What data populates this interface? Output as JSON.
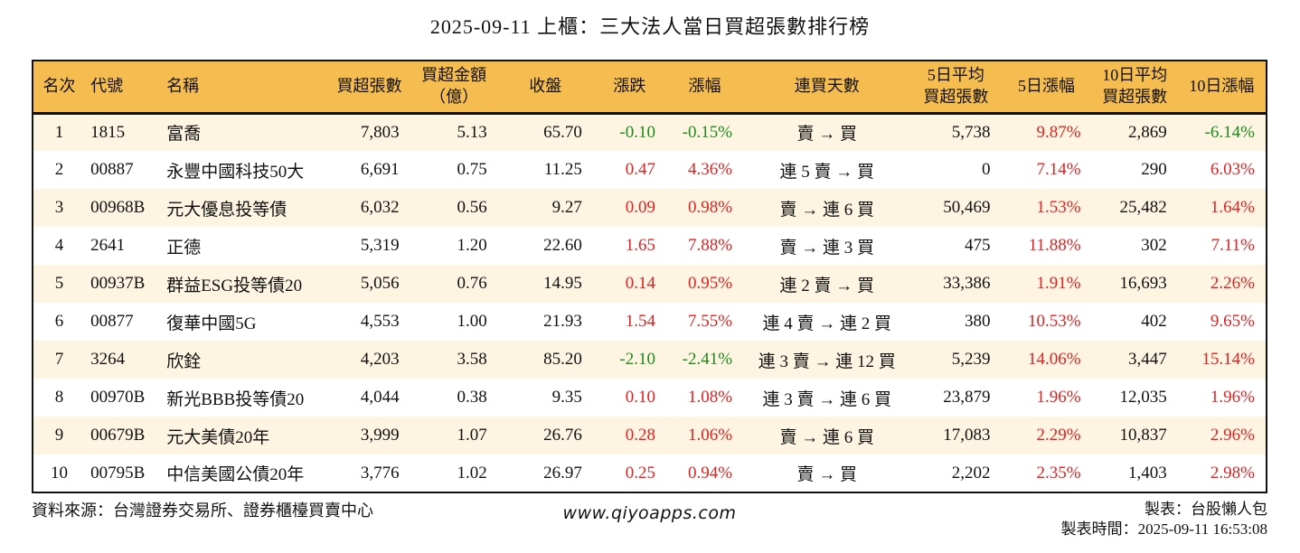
{
  "title": "2025-09-11 上櫃：三大法人當日買超張數排行榜",
  "colors": {
    "header_bg": "#F5BC4F",
    "row_alt_bg": "#FDF5E2",
    "up_red": "#E02222",
    "down_green": "#1E8A1E",
    "border": "#111111"
  },
  "table": {
    "headers": [
      "名次",
      "代號",
      "名稱",
      "買超張數",
      "買超金額\n（億）",
      "收盤",
      "漲跌",
      "漲幅",
      "連買天數",
      "5日平均\n買超張數",
      "5日漲幅",
      "10日平均\n買超張數",
      "10日漲幅"
    ],
    "rows": [
      {
        "cells": [
          "1",
          "1815",
          "富喬",
          "7,803",
          "5.13",
          "65.70",
          "-0.10",
          "-0.15%",
          "賣 → 買",
          "5,738",
          "9.87%",
          "2,869",
          "-6.14%"
        ],
        "cell_colors": [
          null,
          null,
          null,
          null,
          null,
          null,
          "green",
          "green",
          null,
          null,
          "red",
          null,
          "green"
        ]
      },
      {
        "cells": [
          "2",
          "00887",
          "永豐中國科技50大",
          "6,691",
          "0.75",
          "11.25",
          "0.47",
          "4.36%",
          "連 5 賣 → 買",
          "0",
          "7.14%",
          "290",
          "6.03%"
        ],
        "cell_colors": [
          null,
          null,
          null,
          null,
          null,
          null,
          "red",
          "red",
          null,
          null,
          "red",
          null,
          "red"
        ]
      },
      {
        "cells": [
          "3",
          "00968B",
          "元大優息投等債",
          "6,032",
          "0.56",
          "9.27",
          "0.09",
          "0.98%",
          "賣 → 連 6 買",
          "50,469",
          "1.53%",
          "25,482",
          "1.64%"
        ],
        "cell_colors": [
          null,
          null,
          null,
          null,
          null,
          null,
          "red",
          "red",
          null,
          null,
          "red",
          null,
          "red"
        ]
      },
      {
        "cells": [
          "4",
          "2641",
          "正德",
          "5,319",
          "1.20",
          "22.60",
          "1.65",
          "7.88%",
          "賣 → 連 3 買",
          "475",
          "11.88%",
          "302",
          "7.11%"
        ],
        "cell_colors": [
          null,
          null,
          null,
          null,
          null,
          null,
          "red",
          "red",
          null,
          null,
          "red",
          null,
          "red"
        ]
      },
      {
        "cells": [
          "5",
          "00937B",
          "群益ESG投等債20",
          "5,056",
          "0.76",
          "14.95",
          "0.14",
          "0.95%",
          "連 2 賣 → 買",
          "33,386",
          "1.91%",
          "16,693",
          "2.26%"
        ],
        "cell_colors": [
          null,
          null,
          null,
          null,
          null,
          null,
          "red",
          "red",
          null,
          null,
          "red",
          null,
          "red"
        ]
      },
      {
        "cells": [
          "6",
          "00877",
          "復華中國5G",
          "4,553",
          "1.00",
          "21.93",
          "1.54",
          "7.55%",
          "連 4 賣 → 連 2 買",
          "380",
          "10.53%",
          "402",
          "9.65%"
        ],
        "cell_colors": [
          null,
          null,
          null,
          null,
          null,
          null,
          "red",
          "red",
          null,
          null,
          "red",
          null,
          "red"
        ]
      },
      {
        "cells": [
          "7",
          "3264",
          "欣銓",
          "4,203",
          "3.58",
          "85.20",
          "-2.10",
          "-2.41%",
          "連 3 賣 → 連 12 買",
          "5,239",
          "14.06%",
          "3,447",
          "15.14%"
        ],
        "cell_colors": [
          null,
          null,
          null,
          null,
          null,
          null,
          "green",
          "green",
          null,
          null,
          "red",
          null,
          "red"
        ]
      },
      {
        "cells": [
          "8",
          "00970B",
          "新光BBB投等債20",
          "4,044",
          "0.38",
          "9.35",
          "0.10",
          "1.08%",
          "連 3 賣 → 連 6 買",
          "23,879",
          "1.96%",
          "12,035",
          "1.96%"
        ],
        "cell_colors": [
          null,
          null,
          null,
          null,
          null,
          null,
          "red",
          "red",
          null,
          null,
          "red",
          null,
          "red"
        ]
      },
      {
        "cells": [
          "9",
          "00679B",
          "元大美債20年",
          "3,999",
          "1.07",
          "26.76",
          "0.28",
          "1.06%",
          "賣 → 連 6 買",
          "17,083",
          "2.29%",
          "10,837",
          "2.96%"
        ],
        "cell_colors": [
          null,
          null,
          null,
          null,
          null,
          null,
          "red",
          "red",
          null,
          null,
          "red",
          null,
          "red"
        ]
      },
      {
        "cells": [
          "10",
          "00795B",
          "中信美國公債20年",
          "3,776",
          "1.02",
          "26.97",
          "0.25",
          "0.94%",
          "賣 → 買",
          "2,202",
          "2.35%",
          "1,403",
          "2.98%"
        ],
        "cell_colors": [
          null,
          null,
          null,
          null,
          null,
          null,
          "red",
          "red",
          null,
          null,
          "red",
          null,
          "red"
        ]
      }
    ]
  },
  "footer": {
    "source": "資料來源：台灣證券交易所、證券櫃檯買賣中心",
    "website": "www.qiyoapps.com",
    "maker": "製表：台股懶人包",
    "generated": "製表時間：2025-09-11 16:53:08"
  }
}
